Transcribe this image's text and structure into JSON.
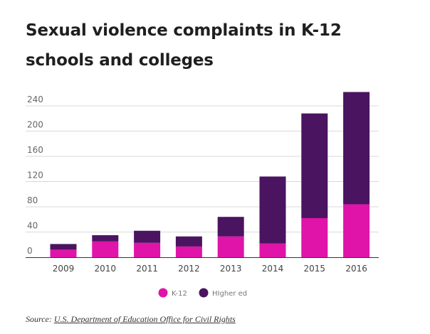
{
  "title": "Sexual violence complaints in K-12 schools and colleges",
  "source": {
    "prefix": "Source:",
    "link_text": "U.S. Department of Education Office for Civil Rights"
  },
  "colors": {
    "k12": "#e014a8",
    "higher_ed": "#4a1460",
    "grid": "#d9d9d9",
    "axis": "#333333",
    "tick_text": "#666666"
  },
  "chart_data": {
    "type": "bar",
    "stacked": true,
    "title": "Sexual violence complaints in K-12 schools and colleges",
    "xlabel": "",
    "ylabel": "",
    "categories": [
      "2009",
      "2010",
      "2011",
      "2012",
      "2013",
      "2014",
      "2015",
      "2016"
    ],
    "series": [
      {
        "name": "K-12",
        "values": [
          12,
          25,
          23,
          17,
          33,
          22,
          62,
          84
        ]
      },
      {
        "name": "HIgher ed",
        "values": [
          9,
          10,
          19,
          16,
          31,
          106,
          166,
          178
        ]
      }
    ],
    "ylim": [
      0,
      260
    ],
    "yticks": [
      0,
      40,
      80,
      120,
      160,
      200,
      240
    ],
    "grid": true,
    "legend": "bottom-center"
  }
}
